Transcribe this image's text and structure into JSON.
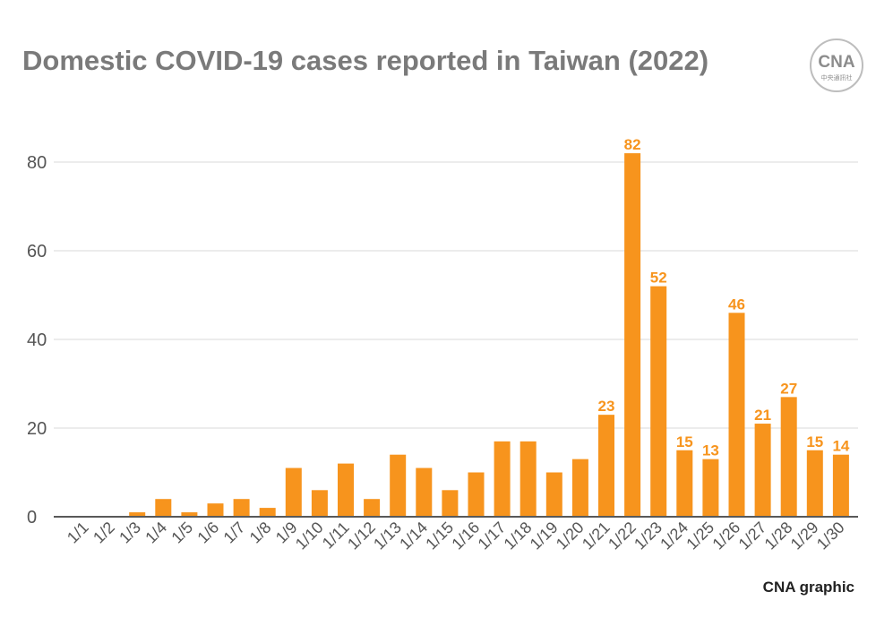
{
  "title": "Domestic COVID-19 cases reported in Taiwan (2022)",
  "credit": "CNA graphic",
  "logo": {
    "text": "CNA",
    "subtext": "中央通訊社",
    "icon": "cna-logo"
  },
  "colors": {
    "bar": "#f7941d",
    "label": "#f7941d",
    "grid": "#d9d9d9",
    "axis": "#595959",
    "tick": "#555555"
  },
  "chart_data": {
    "type": "bar",
    "title": "Domestic COVID-19 cases reported in Taiwan (2022)",
    "xlabel": "",
    "ylabel": "",
    "categories": [
      "1/1",
      "1/2",
      "1/3",
      "1/4",
      "1/5",
      "1/6",
      "1/7",
      "1/8",
      "1/9",
      "1/10",
      "1/11",
      "1/12",
      "1/13",
      "1/14",
      "1/15",
      "1/16",
      "1/17",
      "1/18",
      "1/19",
      "1/20",
      "1/21",
      "1/22",
      "1/23",
      "1/24",
      "1/25",
      "1/26",
      "1/27",
      "1/28",
      "1/29",
      "1/30"
    ],
    "values": [
      0,
      0,
      1,
      4,
      1,
      3,
      4,
      2,
      11,
      6,
      12,
      4,
      14,
      11,
      6,
      10,
      17,
      17,
      10,
      13,
      23,
      82,
      52,
      15,
      13,
      46,
      21,
      27,
      15,
      14
    ],
    "data_labels": {
      "1/21": 23,
      "1/22": 82,
      "1/23": 52,
      "1/24": 15,
      "1/25": 13,
      "1/26": 46,
      "1/27": 21,
      "1/28": 27,
      "1/29": 15,
      "1/30": 14
    },
    "ylim": [
      0,
      80
    ],
    "yticks": [
      0,
      20,
      40,
      60,
      80
    ],
    "grid": true,
    "legend": "none"
  }
}
